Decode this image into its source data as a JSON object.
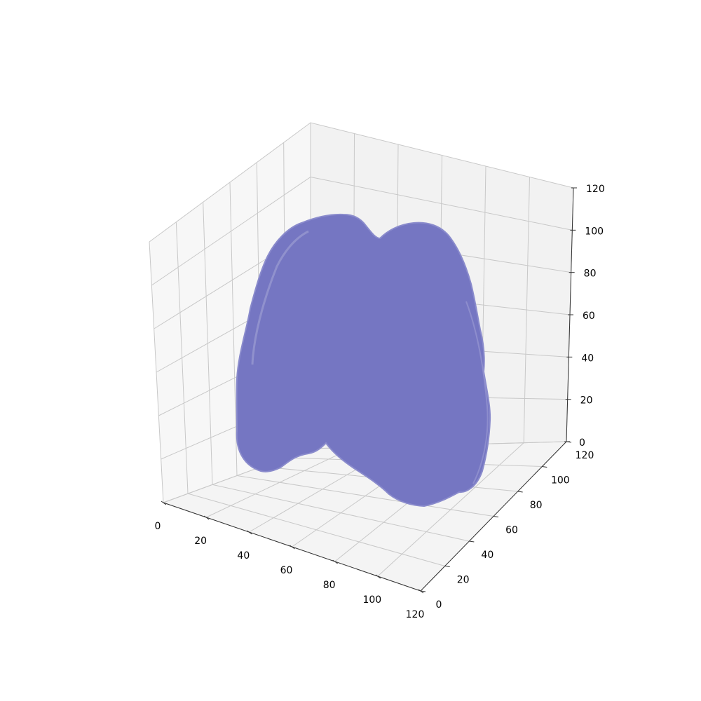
{
  "chart_data": {
    "type": "3d-surface",
    "title": "",
    "xlabel": "",
    "ylabel": "",
    "zlabel": "",
    "xlim": [
      0,
      120
    ],
    "ylim": [
      0,
      120
    ],
    "zlim": [
      0,
      120
    ],
    "x_ticks": [
      "0",
      "20",
      "40",
      "60",
      "80",
      "100",
      "120"
    ],
    "y_ticks": [
      "0",
      "20",
      "40",
      "60",
      "80",
      "100",
      "120"
    ],
    "z_ticks": [
      "0",
      "20",
      "40",
      "60",
      "80",
      "100",
      "120"
    ],
    "grid": true,
    "surface_color": "#7576c2",
    "pane_colors": {
      "left": "#f7f7f7",
      "back": "#f2f2f2",
      "floor": "#f4f4f4"
    }
  }
}
